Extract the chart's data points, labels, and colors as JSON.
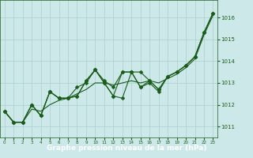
{
  "xlabel": "Graphe pression niveau de la mer (hPa)",
  "bg_color": "#cce8e8",
  "plot_bg_color": "#cce8e8",
  "line_color": "#1a5c1a",
  "grid_color": "#aacfcf",
  "text_color": "#1a5c1a",
  "xlabel_bg": "#2a6a2a",
  "xlabel_fg": "#ffffff",
  "ylim": [
    1010.5,
    1016.8
  ],
  "xlim": [
    -0.5,
    23.5
  ],
  "yticks": [
    1011,
    1012,
    1013,
    1014,
    1015,
    1016
  ],
  "xticks": [
    0,
    1,
    2,
    3,
    4,
    5,
    6,
    7,
    8,
    9,
    10,
    11,
    12,
    13,
    14,
    15,
    16,
    17,
    18,
    19,
    20,
    21,
    22,
    23
  ],
  "series": [
    [
      1011.7,
      1011.2,
      1011.2,
      1012.0,
      1011.5,
      1012.6,
      1012.3,
      1012.3,
      1012.4,
      1013.1,
      1013.6,
      1013.1,
      1012.8,
      1013.5,
      1013.5,
      1012.8,
      1013.1,
      1012.7,
      1013.3,
      1013.5,
      1013.8,
      1014.2,
      1015.3,
      1016.2
    ],
    [
      1011.7,
      1011.2,
      1011.2,
      1011.8,
      1011.7,
      1012.0,
      1012.2,
      1012.3,
      1012.5,
      1012.7,
      1013.0,
      1013.0,
      1012.9,
      1013.0,
      1013.1,
      1013.0,
      1013.1,
      1013.0,
      1013.2,
      1013.4,
      1013.7,
      1014.1,
      1015.2,
      1016.1
    ],
    [
      1011.7,
      1011.2,
      1011.2,
      1012.0,
      1011.5,
      1012.6,
      1012.3,
      1012.3,
      1012.8,
      1013.0,
      1013.6,
      1013.0,
      1012.4,
      1013.5,
      1013.5,
      1013.5,
      1013.1,
      1012.7,
      1013.3,
      1013.5,
      1013.8,
      1014.2,
      1015.3,
      1016.2
    ],
    [
      1011.7,
      1011.2,
      1011.2,
      1012.0,
      1011.5,
      1012.6,
      1012.3,
      1012.3,
      1012.4,
      1013.1,
      1013.6,
      1013.0,
      1012.4,
      1012.3,
      1013.5,
      1012.8,
      1013.0,
      1012.6,
      1013.3,
      1013.5,
      1013.8,
      1014.2,
      1015.3,
      1016.2
    ]
  ],
  "marker": "D",
  "markersize": 2.5,
  "linewidth": 0.8
}
